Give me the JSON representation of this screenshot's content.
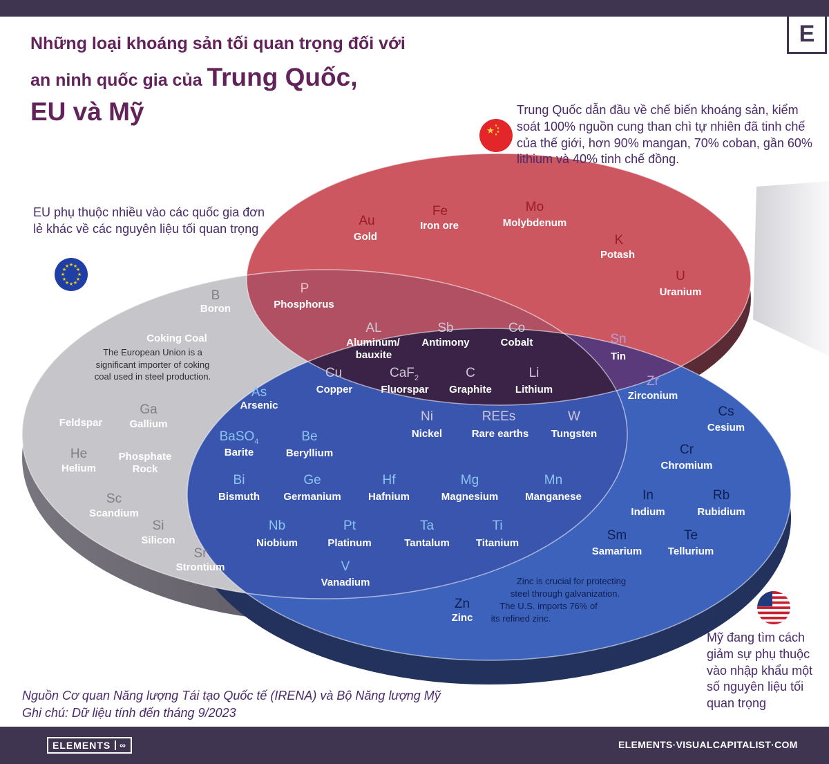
{
  "title": {
    "line1": "Những loại khoáng sản tối quan trọng đối với",
    "line2a": "an ninh quốc gia của ",
    "line2b": "Trung Quốc,",
    "line3": "EU và Mỹ"
  },
  "logo_letter": "E",
  "notes": {
    "eu": "EU phụ thuộc nhiều vào các quốc gia đơn lẻ khác về các nguyên liệu tối quan trọng",
    "china": "Trung Quốc dẫn đầu về chế biến khoáng sản, kiểm soát 100% nguồn cung than chì tự nhiên đã tinh chế của thế giới, hơn 90% mangan, 70% coban, gần 60% lithium và 40% tinh chế đồng.",
    "us": "Mỹ đang tìm cách giảm sự phụ thuộc vào nhập khẩu một số nguyên liệu tối quan trọng"
  },
  "source": {
    "line1": "Nguồn Cơ quan Năng lượng Tái tạo Quốc tế (IRENA) và Bộ Năng lượng Mỹ",
    "line2": "Ghi chú: Dữ liệu tính đến tháng 9/2023"
  },
  "colors": {
    "china": "#cc5560",
    "eu": "#c4c4c8",
    "us": "#3a5fb8",
    "overlap_all": "#3b2348",
    "text_dark": "#4a2a6a"
  },
  "sets": {
    "china_only": [
      {
        "symbol": "Au",
        "name": "Gold"
      },
      {
        "symbol": "Fe",
        "name": "Iron ore"
      },
      {
        "symbol": "Mo",
        "name": "Molybdenum"
      },
      {
        "symbol": "K",
        "name": "Potash"
      },
      {
        "symbol": "U",
        "name": "Uranium"
      }
    ],
    "china_eu": [
      {
        "symbol": "P",
        "name": "Phosphorus"
      }
    ],
    "china_us": [
      {
        "symbol": "Sn",
        "name": "Tin"
      },
      {
        "symbol": "Zr",
        "name": "Zirconium"
      }
    ],
    "all_three": [
      {
        "symbol": "AL",
        "name": "Aluminum/"
      },
      {
        "symbol": "Sb",
        "name": "Antimony"
      },
      {
        "symbol": "Co",
        "name": "Cobalt"
      },
      {
        "symbol": "Cu",
        "name": "Copper"
      },
      {
        "symbol": "CaF2",
        "name": "Fluorspar"
      },
      {
        "symbol": "C",
        "name": "Graphite"
      },
      {
        "symbol": "Li",
        "name": "Lithium"
      },
      {
        "symbol": "Ni",
        "name": "Nickel"
      },
      {
        "symbol": "REEs",
        "name": "Rare earths"
      },
      {
        "symbol": "W",
        "name": "Tungsten"
      }
    ],
    "all_three_extra": "bauxite",
    "eu_only": [
      {
        "symbol": "B",
        "name": "Boron"
      },
      {
        "symbol": "Ga",
        "name": "Gallium"
      },
      {
        "symbol": "He",
        "name": "Helium"
      },
      {
        "symbol": "Sc",
        "name": "Scandium"
      },
      {
        "symbol": "Si",
        "name": "Silicon"
      },
      {
        "symbol": "Sr",
        "name": "Strontium"
      }
    ],
    "eu_plain": {
      "feldspar": "Feldspar",
      "phosphate1": "Phosphate",
      "phosphate2": "Rock",
      "coking_title": "Coking Coal",
      "coking_1": "The European Union is a",
      "coking_2": "significant importer of coking",
      "coking_3": "coal used in steel production."
    },
    "eu_us": [
      {
        "symbol": "As",
        "name": "Arsenic"
      },
      {
        "symbol": "BaSO4",
        "name": "Barite"
      },
      {
        "symbol": "Be",
        "name": "Beryllium"
      },
      {
        "symbol": "Bi",
        "name": "Bismuth"
      },
      {
        "symbol": "Ge",
        "name": "Germanium"
      },
      {
        "symbol": "Hf",
        "name": "Hafnium"
      },
      {
        "symbol": "Mg",
        "name": "Magnesium"
      },
      {
        "symbol": "Mn",
        "name": "Manganese"
      },
      {
        "symbol": "Nb",
        "name": "Niobium"
      },
      {
        "symbol": "Pt",
        "name": "Platinum"
      },
      {
        "symbol": "Ta",
        "name": "Tantalum"
      },
      {
        "symbol": "Ti",
        "name": "Titanium"
      },
      {
        "symbol": "V",
        "name": "Vanadium"
      }
    ],
    "us_only": [
      {
        "symbol": "Cs",
        "name": "Cesium"
      },
      {
        "symbol": "Cr",
        "name": "Chromium"
      },
      {
        "symbol": "In",
        "name": "Indium"
      },
      {
        "symbol": "Rb",
        "name": "Rubidium"
      },
      {
        "symbol": "Sm",
        "name": "Samarium"
      },
      {
        "symbol": "Te",
        "name": "Tellurium"
      },
      {
        "symbol": "Zn",
        "name": "Zinc"
      }
    ],
    "zinc_note": {
      "l1": "Zinc is crucial for protecting",
      "l2": "steel through galvanization.",
      "l3": "The U.S. imports 76% of",
      "l4": "its refined zinc."
    }
  },
  "footer": {
    "brand": "ELEMENTS",
    "site": "ELEMENTS·VISUALCAPITALIST·COM"
  }
}
